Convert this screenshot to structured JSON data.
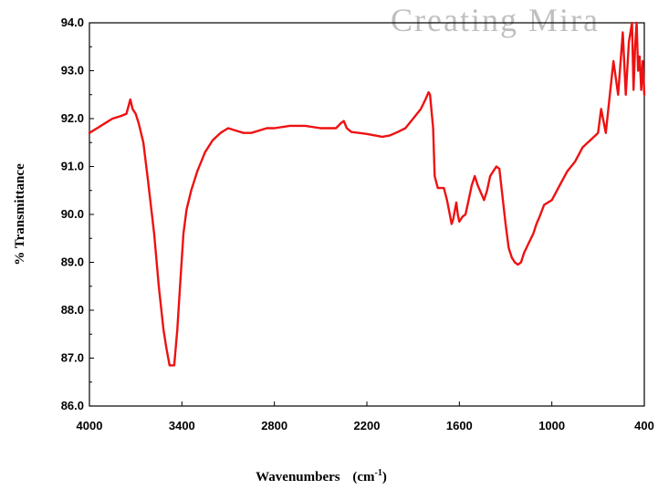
{
  "watermark": {
    "text": "Creating Mira"
  },
  "chart_data": {
    "type": "line",
    "xlabel": "Wavenumbers",
    "xlabel_unit_base": "(cm",
    "xlabel_unit_sup": "-1",
    "xlabel_unit_close": ")",
    "ylabel": "% Transmittance",
    "xlim": [
      4000,
      400
    ],
    "ylim": [
      86.0,
      94.0
    ],
    "x_reversed": true,
    "grid": false,
    "line_color": "#ee1111",
    "xticks": [
      "4000",
      "3400",
      "2800",
      "2200",
      "1600",
      "1000",
      "400"
    ],
    "yticks": [
      "86.0",
      "87.0",
      "88.0",
      "89.0",
      "90.0",
      "91.0",
      "92.0",
      "93.0",
      "94.0"
    ],
    "series": [
      {
        "x": [
          4000,
          3950,
          3900,
          3850,
          3800,
          3760,
          3735,
          3720,
          3700,
          3680,
          3650,
          3620,
          3580,
          3550,
          3520,
          3500,
          3480,
          3450,
          3430,
          3410,
          3390,
          3370,
          3340,
          3300,
          3250,
          3200,
          3150,
          3100,
          3050,
          3000,
          2950,
          2900,
          2850,
          2800,
          2700,
          2600,
          2500,
          2400,
          2370,
          2350,
          2330,
          2300,
          2250,
          2200,
          2100,
          2050,
          2000,
          1950,
          1900,
          1850,
          1820,
          1800,
          1790,
          1770,
          1760,
          1740,
          1700,
          1680,
          1650,
          1640,
          1620,
          1610,
          1600,
          1580,
          1560,
          1540,
          1520,
          1500,
          1480,
          1460,
          1440,
          1420,
          1400,
          1380,
          1360,
          1340,
          1300,
          1280,
          1260,
          1240,
          1220,
          1200,
          1180,
          1150,
          1120,
          1100,
          1080,
          1050,
          1000,
          950,
          900,
          850,
          800,
          750,
          700,
          680,
          650,
          620,
          600,
          570,
          540,
          520,
          500,
          480,
          470,
          460,
          450,
          440,
          430,
          420,
          410,
          400
        ],
        "y": [
          91.7,
          91.8,
          91.9,
          92.0,
          92.05,
          92.1,
          92.4,
          92.2,
          92.1,
          91.9,
          91.5,
          90.7,
          89.6,
          88.5,
          87.6,
          87.2,
          86.85,
          86.85,
          87.6,
          88.6,
          89.6,
          90.1,
          90.5,
          90.9,
          91.3,
          91.55,
          91.7,
          91.8,
          91.75,
          91.7,
          91.7,
          91.75,
          91.8,
          91.8,
          91.85,
          91.85,
          91.8,
          91.8,
          91.9,
          91.95,
          91.8,
          91.72,
          91.7,
          91.68,
          91.62,
          91.65,
          91.72,
          91.8,
          92.0,
          92.2,
          92.4,
          92.55,
          92.5,
          91.8,
          90.8,
          90.55,
          90.55,
          90.3,
          89.8,
          89.9,
          90.25,
          90.0,
          89.85,
          89.95,
          90.0,
          90.3,
          90.6,
          90.8,
          90.6,
          90.45,
          90.3,
          90.5,
          90.8,
          90.9,
          91.0,
          90.95,
          89.8,
          89.3,
          89.1,
          89.0,
          88.95,
          89.0,
          89.2,
          89.4,
          89.6,
          89.8,
          89.95,
          90.2,
          90.3,
          90.6,
          90.9,
          91.1,
          91.4,
          91.55,
          91.7,
          92.2,
          91.7,
          92.6,
          93.2,
          92.5,
          93.8,
          92.5,
          93.6,
          94.0,
          92.6,
          93.5,
          94.0,
          93.0,
          93.3,
          92.6,
          93.2,
          92.5
        ]
      }
    ]
  }
}
